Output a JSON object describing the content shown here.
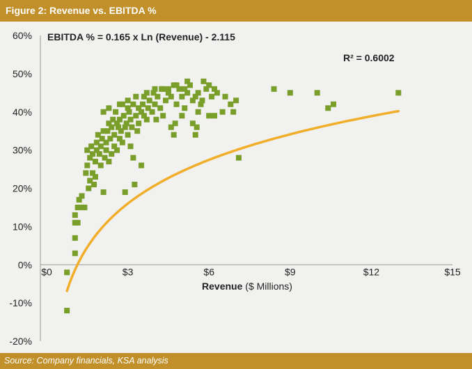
{
  "figure": {
    "title": "Figure 2: Revenue vs. EBITDA %",
    "source": "Source: Company financials, KSA analysis"
  },
  "colors": {
    "band": "#c2902b",
    "background": "#f1f1ef",
    "points": "#7a9e2a",
    "trendline": "#f0ae2b"
  },
  "chart_data": {
    "type": "scatter",
    "title": "",
    "xlabel_bold": "Revenue",
    "xlabel_rest": " ($ Millions)",
    "ylabel": "",
    "xlim": [
      0,
      15
    ],
    "ylim": [
      -20,
      60
    ],
    "x_ticks": [
      0,
      3,
      6,
      9,
      12,
      15
    ],
    "x_tick_labels": [
      "$0",
      "$3",
      "$6",
      "$9",
      "$12",
      "$15"
    ],
    "y_ticks": [
      60,
      50,
      40,
      30,
      20,
      10,
      0,
      -10,
      -20
    ],
    "y_tick_labels": [
      "60%",
      "50%",
      "40%",
      "30%",
      "20%",
      "10%",
      "0%",
      "-10%",
      "-20%"
    ],
    "grid": false,
    "trendline": {
      "kind": "logarithmic",
      "equation": "EBITDA % = 0.165 x Ln (Revenue) - 2.115",
      "r_squared": "R² = 0.6002",
      "a": 16.5,
      "b": -2.115,
      "x_range": [
        0.75,
        13
      ]
    },
    "points": [
      [
        0.75,
        -2
      ],
      [
        0.75,
        -12
      ],
      [
        1.05,
        3
      ],
      [
        1.05,
        7
      ],
      [
        1.05,
        11
      ],
      [
        1.05,
        13
      ],
      [
        1.15,
        11
      ],
      [
        1.15,
        15
      ],
      [
        1.2,
        17
      ],
      [
        1.3,
        15
      ],
      [
        1.3,
        18
      ],
      [
        1.4,
        15
      ],
      [
        1.45,
        24
      ],
      [
        1.5,
        26
      ],
      [
        1.5,
        30
      ],
      [
        1.55,
        20
      ],
      [
        1.6,
        22
      ],
      [
        1.6,
        28
      ],
      [
        1.65,
        31
      ],
      [
        1.7,
        24
      ],
      [
        1.7,
        29
      ],
      [
        1.75,
        21
      ],
      [
        1.8,
        23
      ],
      [
        1.8,
        27
      ],
      [
        1.85,
        30
      ],
      [
        1.85,
        32
      ],
      [
        1.9,
        34
      ],
      [
        1.95,
        29
      ],
      [
        2.0,
        26
      ],
      [
        2.0,
        31
      ],
      [
        2.05,
        33
      ],
      [
        2.1,
        35
      ],
      [
        2.1,
        19
      ],
      [
        2.15,
        28
      ],
      [
        2.2,
        30
      ],
      [
        2.2,
        32
      ],
      [
        2.25,
        35
      ],
      [
        2.3,
        27
      ],
      [
        2.3,
        37
      ],
      [
        2.35,
        33
      ],
      [
        2.4,
        29
      ],
      [
        2.4,
        36
      ],
      [
        2.45,
        38
      ],
      [
        2.5,
        31
      ],
      [
        2.5,
        34
      ],
      [
        2.55,
        40
      ],
      [
        2.6,
        37
      ],
      [
        2.6,
        30
      ],
      [
        2.65,
        36
      ],
      [
        2.7,
        33
      ],
      [
        2.7,
        38
      ],
      [
        2.75,
        35
      ],
      [
        2.8,
        32
      ],
      [
        2.8,
        42
      ],
      [
        2.85,
        39
      ],
      [
        2.9,
        19
      ],
      [
        2.9,
        36
      ],
      [
        2.95,
        37
      ],
      [
        3.0,
        34
      ],
      [
        3.0,
        41
      ],
      [
        3.05,
        40
      ],
      [
        3.1,
        38
      ],
      [
        3.1,
        31
      ],
      [
        3.15,
        36
      ],
      [
        3.2,
        28
      ],
      [
        3.2,
        42
      ],
      [
        3.25,
        21
      ],
      [
        3.3,
        39
      ],
      [
        3.35,
        35
      ],
      [
        3.4,
        41
      ],
      [
        3.4,
        37
      ],
      [
        3.5,
        26
      ],
      [
        3.5,
        40
      ],
      [
        3.55,
        42
      ],
      [
        3.6,
        44
      ],
      [
        3.6,
        39
      ],
      [
        3.7,
        38
      ],
      [
        3.75,
        41
      ],
      [
        3.8,
        43
      ],
      [
        3.9,
        40
      ],
      [
        3.95,
        45
      ],
      [
        4.0,
        42
      ],
      [
        4.05,
        38
      ],
      [
        4.1,
        44
      ],
      [
        4.2,
        41
      ],
      [
        4.3,
        46
      ],
      [
        4.3,
        39
      ],
      [
        4.4,
        43
      ],
      [
        4.5,
        45
      ],
      [
        4.6,
        44
      ],
      [
        4.7,
        47
      ],
      [
        4.75,
        37
      ],
      [
        4.8,
        42
      ],
      [
        4.9,
        46
      ],
      [
        5.0,
        44
      ],
      [
        5.1,
        41
      ],
      [
        5.2,
        45
      ],
      [
        5.3,
        47
      ],
      [
        5.4,
        43
      ],
      [
        5.5,
        44
      ],
      [
        5.6,
        45
      ],
      [
        5.7,
        42
      ],
      [
        5.8,
        48
      ],
      [
        5.9,
        46
      ],
      [
        6.0,
        47
      ],
      [
        6.1,
        44
      ],
      [
        6.2,
        46
      ],
      [
        6.3,
        45
      ],
      [
        4.6,
        36
      ],
      [
        4.7,
        34
      ],
      [
        5.0,
        39
      ],
      [
        5.4,
        37
      ],
      [
        5.5,
        34
      ],
      [
        5.55,
        36
      ],
      [
        5.6,
        40
      ],
      [
        5.75,
        43
      ],
      [
        6.0,
        39
      ],
      [
        6.2,
        39
      ],
      [
        6.5,
        40
      ],
      [
        6.6,
        44
      ],
      [
        6.8,
        42
      ],
      [
        6.9,
        40
      ],
      [
        7.0,
        43
      ],
      [
        7.1,
        28
      ],
      [
        8.4,
        46
      ],
      [
        9.0,
        45
      ],
      [
        10.0,
        45
      ],
      [
        10.4,
        41
      ],
      [
        10.6,
        42
      ],
      [
        13.0,
        45
      ],
      [
        2.1,
        40
      ],
      [
        2.3,
        41
      ],
      [
        2.7,
        42
      ],
      [
        3.0,
        43
      ],
      [
        3.3,
        44
      ],
      [
        3.7,
        45
      ],
      [
        4.0,
        46
      ],
      [
        4.25,
        46
      ],
      [
        4.5,
        46
      ],
      [
        4.8,
        47
      ],
      [
        5.1,
        46
      ],
      [
        5.2,
        48
      ]
    ]
  }
}
